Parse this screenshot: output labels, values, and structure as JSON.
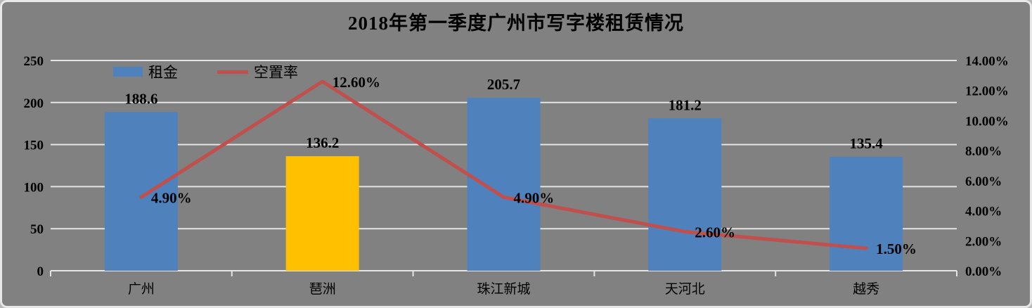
{
  "chart_data": {
    "type": "combo",
    "title": "2018年第一季度广州市写字楼租赁情况",
    "categories": [
      "广州",
      "琶洲",
      "珠江新城",
      "天河北",
      "越秀"
    ],
    "series": [
      {
        "name": "租金",
        "type": "bar",
        "axis": "left",
        "values": [
          188.6,
          136.2,
          205.7,
          181.2,
          135.4
        ],
        "labels": [
          "188.6",
          "136.2",
          "205.7",
          "181.2",
          "135.4"
        ],
        "bar_colors": [
          "#4F81BD",
          "#FFC000",
          "#4F81BD",
          "#4F81BD",
          "#4F81BD"
        ]
      },
      {
        "name": "空置率",
        "type": "line",
        "axis": "right",
        "values": [
          4.9,
          12.6,
          4.9,
          2.6,
          1.5
        ],
        "labels": [
          "4.90%",
          "12.60%",
          "4.90%",
          "2.60%",
          "1.50%"
        ],
        "color": "#C0504D"
      }
    ],
    "left_axis": {
      "min": 0,
      "max": 250,
      "step": 50,
      "ticks": [
        "0",
        "50",
        "100",
        "150",
        "200",
        "250"
      ]
    },
    "right_axis": {
      "min": 0,
      "max": 14,
      "step": 2,
      "ticks": [
        "0.00%",
        "2.00%",
        "4.00%",
        "6.00%",
        "8.00%",
        "10.00%",
        "12.00%",
        "14.00%"
      ]
    },
    "grid": "horizontal",
    "legend_position": "top-left-inside",
    "colors": {
      "bar_primary": "#4F81BD",
      "bar_highlight": "#FFC000",
      "line": "#C0504D",
      "background": "#818181",
      "gridline": "#E4E4E4",
      "text": "#000000"
    }
  }
}
